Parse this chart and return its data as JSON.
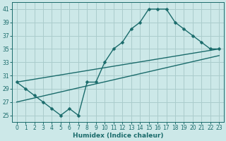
{
  "xlabel": "Humidex (Indice chaleur)",
  "ylabel": "",
  "bg_color": "#cce8e8",
  "grid_color": "#aacccc",
  "line_color": "#1a6b6b",
  "xlim": [
    -0.5,
    23.5
  ],
  "ylim": [
    24,
    42
  ],
  "yticks": [
    25,
    27,
    29,
    31,
    33,
    35,
    37,
    39,
    41
  ],
  "xticks": [
    0,
    1,
    2,
    3,
    4,
    5,
    6,
    7,
    8,
    9,
    10,
    11,
    12,
    13,
    14,
    15,
    16,
    17,
    18,
    19,
    20,
    21,
    22,
    23
  ],
  "main_x": [
    0,
    1,
    2,
    3,
    4,
    5,
    6,
    7,
    8,
    9,
    10,
    11,
    12,
    13,
    14,
    15,
    16,
    17,
    18,
    19,
    20,
    21,
    22,
    23
  ],
  "main_y": [
    30,
    29,
    28,
    27,
    26,
    25,
    26,
    25,
    30,
    30,
    33,
    35,
    36,
    38,
    39,
    41,
    41,
    41,
    39,
    38,
    37,
    36,
    35,
    35
  ],
  "line1_x": [
    0,
    23
  ],
  "line1_y": [
    30,
    35
  ],
  "line2_x": [
    0,
    23
  ],
  "line2_y": [
    27,
    34
  ],
  "marker_size": 2.5,
  "line_width": 1.0,
  "tick_fontsize": 5.5,
  "xlabel_fontsize": 6.5
}
